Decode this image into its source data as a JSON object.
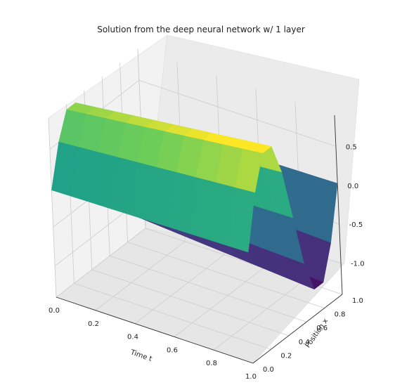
{
  "chart_data": {
    "type": "surface",
    "title": "Solution from the deep neural network w/ 1 layer",
    "xlabel": "Time t",
    "ylabel": "Position x",
    "zlabel": "",
    "xlim": [
      0,
      1
    ],
    "ylim": [
      0,
      1
    ],
    "zlim": [
      -1.4,
      0.9
    ],
    "x_ticks": [
      "0.0",
      "0.2",
      "0.4",
      "0.6",
      "0.8",
      "1.0"
    ],
    "y_ticks": [
      "0.0",
      "0.2",
      "0.4",
      "0.6",
      "0.8",
      "1.0"
    ],
    "z_ticks": [
      "-1.0",
      "-0.5",
      "0.0",
      "0.5"
    ],
    "x_tick_values": [
      0,
      0.2,
      0.4,
      0.6,
      0.8,
      1.0
    ],
    "y_tick_values": [
      0,
      0.2,
      0.4,
      0.6,
      0.8,
      1.0
    ],
    "z_tick_values": [
      -1.0,
      -0.5,
      0.0,
      0.5
    ],
    "grid": true,
    "colormap": "viridis",
    "surface": "u(t, x) approximately sin(2*pi*x) with low-amplitude t dependence"
  }
}
